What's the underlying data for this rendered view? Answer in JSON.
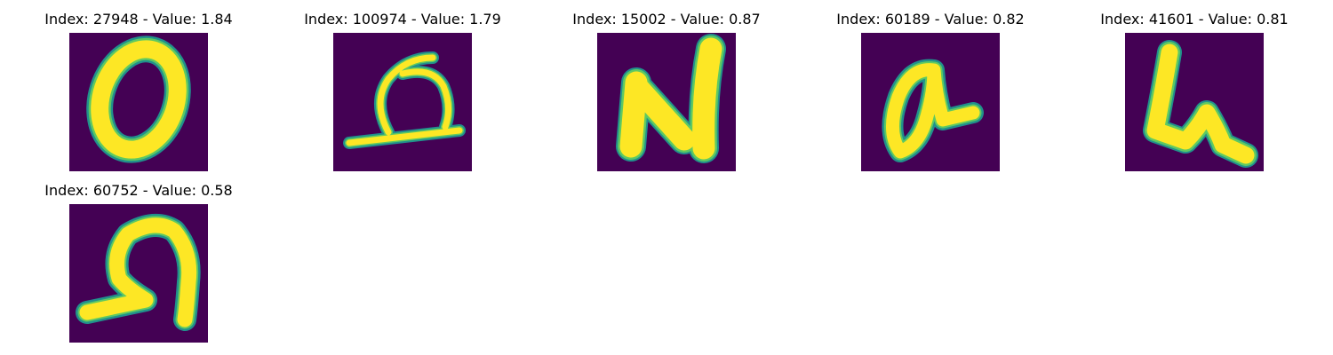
{
  "colors": {
    "background": "#440154",
    "edge": "#21918c",
    "mid": "#5ec962",
    "stroke": "#fde725"
  },
  "panels": [
    {
      "title": "Index: 27948 - Value: 1.84",
      "glyph": "zero-digit"
    },
    {
      "title": "Index: 100974 - Value: 1.79",
      "glyph": "loop-stroke"
    },
    {
      "title": "Index: 15002 - Value: 0.87",
      "glyph": "letter-n"
    },
    {
      "title": "Index: 60189 - Value: 0.82",
      "glyph": "letter-a"
    },
    {
      "title": "Index: 41601 - Value: 0.81",
      "glyph": "letter-u"
    },
    {
      "title": "Index: 60752 - Value: 0.58",
      "glyph": "curl-stroke"
    }
  ]
}
